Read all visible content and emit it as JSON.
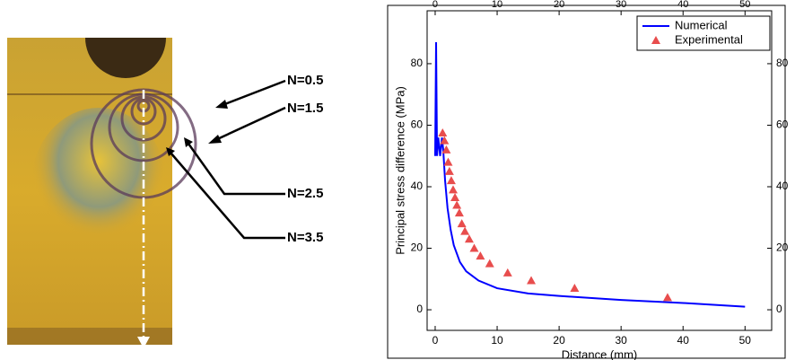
{
  "photo": {
    "labels": [
      "N=0.5",
      "N=1.5",
      "N=2.5",
      "N=3.5"
    ]
  },
  "chart_data": {
    "type": "line",
    "xlabel": "Distance (mm)",
    "ylabel": "Principal stress difference (MPa)",
    "xlim": [
      -1.3,
      54.3
    ],
    "xticks": [
      0,
      10,
      20,
      30,
      40,
      50
    ],
    "ylim": [
      -6.7,
      97.2
    ],
    "yticks": [
      0,
      20,
      40,
      60,
      80
    ],
    "y2lim": [
      -6.7,
      97.2
    ],
    "y2ticks": [
      0,
      20,
      40,
      60,
      80
    ],
    "legend": "upper right",
    "series": [
      {
        "name": "Numerical",
        "color": "#0000ff",
        "style": "line",
        "x": [
          0,
          0.15,
          0.3,
          0.5,
          0.8,
          1.1,
          1.3,
          1.6,
          2,
          2.5,
          3,
          4,
          5,
          7,
          10,
          15,
          20,
          30,
          40,
          50
        ],
        "values": [
          50,
          87,
          50,
          56,
          50,
          56,
          52,
          42,
          33,
          26,
          21,
          15.5,
          12.5,
          9.5,
          7,
          5.3,
          4.5,
          3.2,
          2.2,
          1
        ]
      },
      {
        "name": "Experimental",
        "color": "#e84d4d",
        "style": "marker",
        "x": [
          1.2,
          1.5,
          1.8,
          2.1,
          2.3,
          2.6,
          2.9,
          3.2,
          3.5,
          3.9,
          4.3,
          4.8,
          5.5,
          6.3,
          7.3,
          8.8,
          11.7,
          15.5,
          22.5,
          37.5
        ],
        "values": [
          57.5,
          55,
          52,
          48,
          45,
          42,
          39,
          36.5,
          34,
          31.5,
          28,
          25.5,
          23,
          20,
          17.5,
          15,
          12,
          9.5,
          7,
          4
        ]
      }
    ]
  }
}
